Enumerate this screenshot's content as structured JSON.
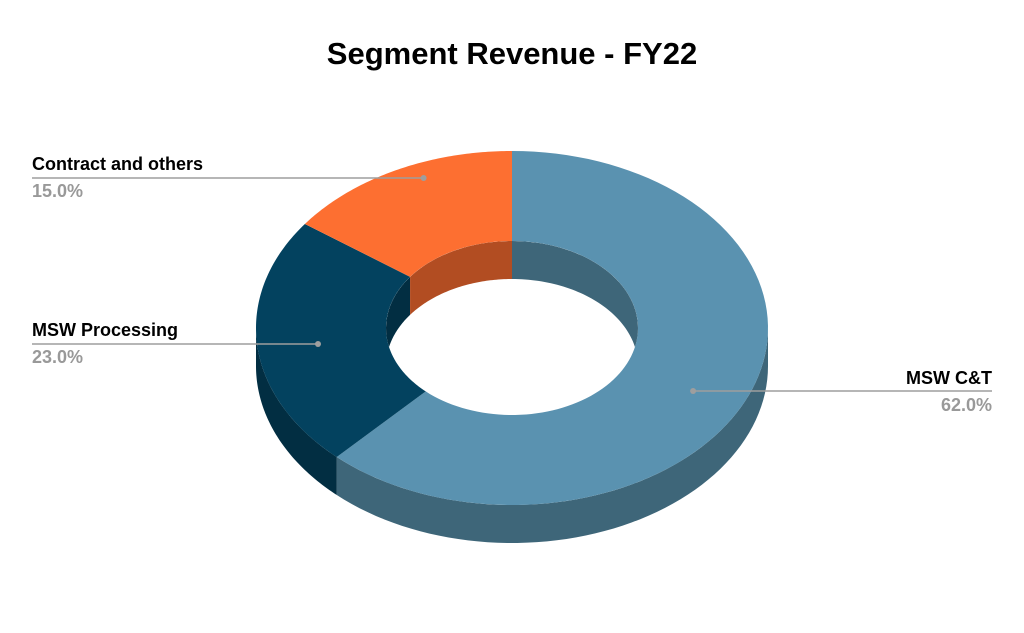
{
  "chart_data": {
    "type": "pie",
    "donut": true,
    "three_d": true,
    "title": "Segment Revenue - FY22",
    "categories": [
      "MSW C&T",
      "MSW Processing",
      "Contract and others"
    ],
    "values": [
      62.0,
      23.0,
      15.0
    ],
    "value_labels": [
      "62.0%",
      "23.0%",
      "15.0%"
    ],
    "colors": [
      "#5a92b0",
      "#03425f",
      "#fd6f31"
    ],
    "side_colors": [
      "#3e6679",
      "#022e42",
      "#b24d22"
    ],
    "label_value_color": "#999999",
    "leader_color": "#9e9e9e",
    "legend": "none"
  }
}
